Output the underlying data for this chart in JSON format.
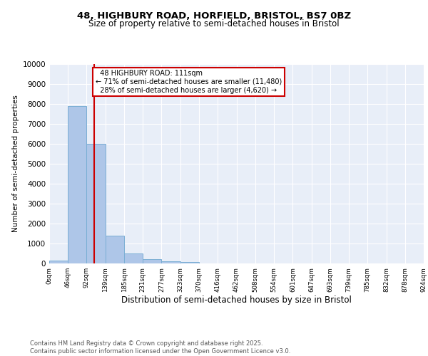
{
  "title_line1": "48, HIGHBURY ROAD, HORFIELD, BRISTOL, BS7 0BZ",
  "title_line2": "Size of property relative to semi-detached houses in Bristol",
  "xlabel": "Distribution of semi-detached houses by size in Bristol",
  "ylabel": "Number of semi-detached properties",
  "property_label": "48 HIGHBURY ROAD: 111sqm",
  "pct_smaller": 71,
  "pct_smaller_count": "11,480",
  "pct_larger": 28,
  "pct_larger_count": "4,620",
  "bar_edges": [
    0,
    46,
    92,
    139,
    185,
    231,
    277,
    323,
    370,
    416,
    462,
    508,
    554,
    601,
    647,
    693,
    739,
    785,
    832,
    878,
    924
  ],
  "bar_heights": [
    130,
    7900,
    6000,
    1400,
    500,
    200,
    120,
    60,
    0,
    0,
    0,
    0,
    0,
    0,
    0,
    0,
    0,
    0,
    0,
    0
  ],
  "bar_color": "#aec6e8",
  "bar_edge_color": "#7aaed4",
  "vline_color": "#cc0000",
  "vline_x": 111,
  "annotation_box_color": "#cc0000",
  "background_color": "#e8eef8",
  "grid_color": "#ffffff",
  "ylim": [
    0,
    10000
  ],
  "yticks": [
    0,
    1000,
    2000,
    3000,
    4000,
    5000,
    6000,
    7000,
    8000,
    9000,
    10000
  ],
  "footer": "Contains HM Land Registry data © Crown copyright and database right 2025.\nContains public sector information licensed under the Open Government Licence v3.0.",
  "tick_labels": [
    "0sqm",
    "46sqm",
    "92sqm",
    "139sqm",
    "185sqm",
    "231sqm",
    "277sqm",
    "323sqm",
    "370sqm",
    "416sqm",
    "462sqm",
    "508sqm",
    "554sqm",
    "601sqm",
    "647sqm",
    "693sqm",
    "739sqm",
    "785sqm",
    "832sqm",
    "878sqm",
    "924sqm"
  ]
}
